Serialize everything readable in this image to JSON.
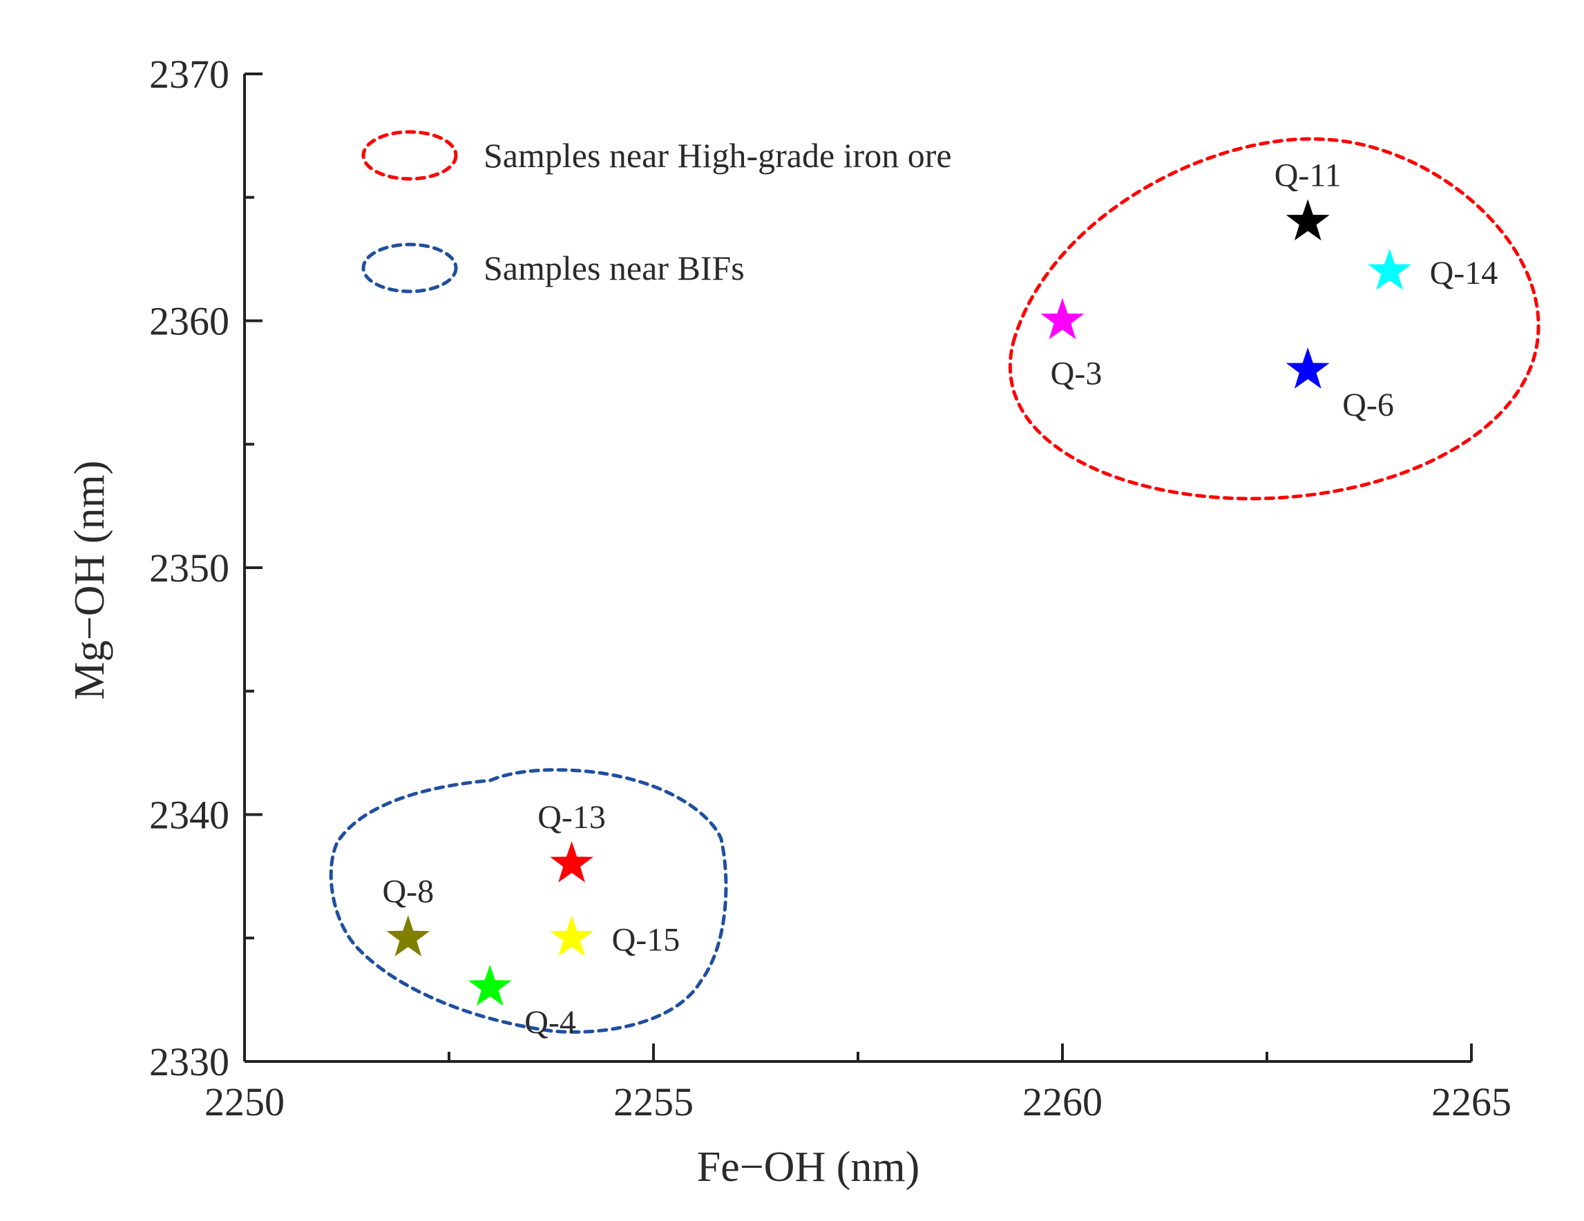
{
  "chart_data": {
    "type": "scatter",
    "title": "",
    "xlabel": "Fe−OH (nm)",
    "ylabel": "Mg−OH (nm)",
    "xlim": [
      2250,
      2265
    ],
    "ylim": [
      2330,
      2370
    ],
    "x_ticks": [
      2250,
      2255,
      2260,
      2265
    ],
    "x_minor_ticks": [
      2252.5,
      2257.5,
      2262.5
    ],
    "y_ticks": [
      2330,
      2340,
      2350,
      2360,
      2370
    ],
    "y_minor_ticks": [
      2335,
      2345,
      2355,
      2365
    ],
    "grid": false,
    "marker": "star",
    "points": [
      {
        "label": "Q-11",
        "x": 2263.0,
        "y": 2364.0,
        "color": "#000000",
        "label_pos": "above"
      },
      {
        "label": "Q-14",
        "x": 2264.0,
        "y": 2362.0,
        "color": "#00ffff",
        "label_pos": "right"
      },
      {
        "label": "Q-3",
        "x": 2260.0,
        "y": 2360.0,
        "color": "#ff00ff",
        "label_pos": "below"
      },
      {
        "label": "Q-6",
        "x": 2263.0,
        "y": 2358.0,
        "color": "#0000ff",
        "label_pos": "below-right"
      },
      {
        "label": "Q-13",
        "x": 2254.0,
        "y": 2338.0,
        "color": "#ff0000",
        "label_pos": "above"
      },
      {
        "label": "Q-8",
        "x": 2252.0,
        "y": 2335.0,
        "color": "#808000",
        "label_pos": "above"
      },
      {
        "label": "Q-15",
        "x": 2254.0,
        "y": 2335.0,
        "color": "#ffff00",
        "label_pos": "right"
      },
      {
        "label": "Q-4",
        "x": 2253.0,
        "y": 2333.0,
        "color": "#00ff00",
        "label_pos": "below-right"
      }
    ],
    "groups": [
      {
        "name": "Samples near High-grade iron ore",
        "color": "#ff0000",
        "members": [
          "Q-11",
          "Q-14",
          "Q-3",
          "Q-6"
        ]
      },
      {
        "name": "Samples near BIFs",
        "color": "#1f4fa0",
        "members": [
          "Q-13",
          "Q-8",
          "Q-15",
          "Q-4"
        ]
      }
    ],
    "legend": {
      "position": "top-left",
      "entries": [
        {
          "label": "Samples near High-grade iron ore",
          "color": "#ff0000"
        },
        {
          "label": "Samples near BIFs",
          "color": "#1f4fa0"
        }
      ]
    }
  }
}
